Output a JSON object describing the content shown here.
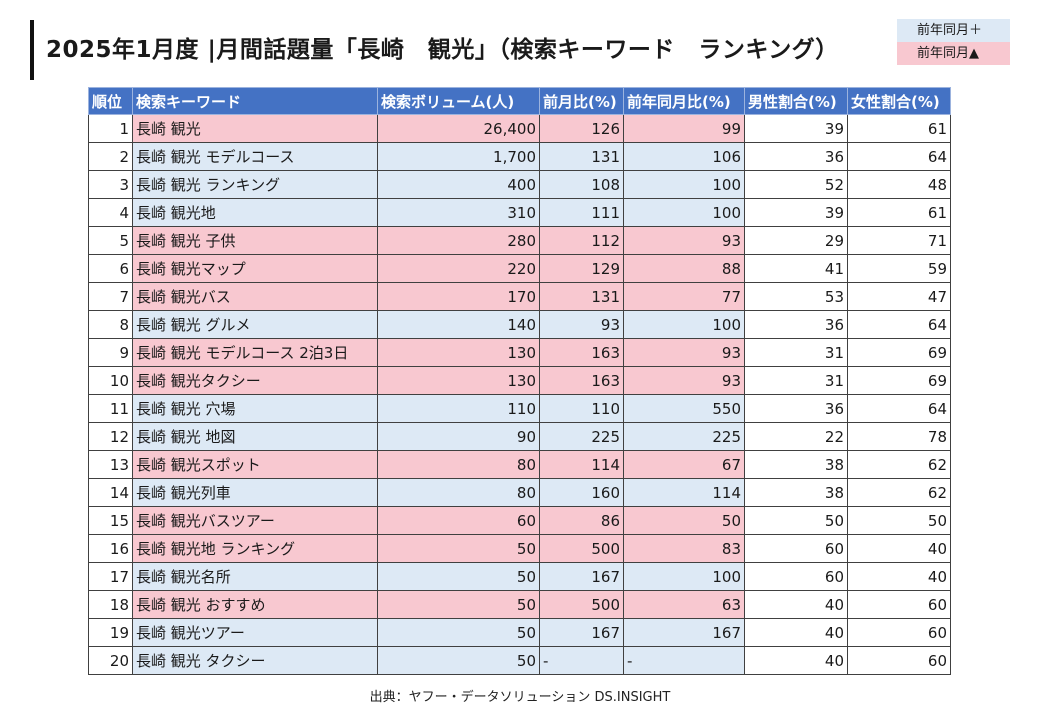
{
  "title": "2025年1月度 |月間話題量「長崎　観光」（検索キーワード　ランキング）",
  "legend": {
    "plus": "前年同月＋",
    "minus": "前年同月▲"
  },
  "headers": [
    "順位",
    "検索キーワード",
    "検索ボリューム(人)",
    "前月比(%)",
    "前年同月比(%)",
    "男性割合(%)",
    "女性割合(%)"
  ],
  "colors": {
    "header": "#4472c4",
    "increase": "#dde9f5",
    "decrease": "#f8c8d0"
  },
  "source": "出典：ヤフー・データソリューション DS.INSIGHT",
  "chart_data": {
    "type": "table",
    "columns": [
      "順位",
      "検索キーワード",
      "検索ボリューム(人)",
      "前月比(%)",
      "前年同月比(%)",
      "男性割合(%)",
      "女性割合(%)"
    ],
    "rows": [
      {
        "rank": "1",
        "keyword": "長崎 観光",
        "volume": "26,400",
        "mom": "126",
        "yoy": "99",
        "male": "39",
        "female": "61",
        "tone": "red"
      },
      {
        "rank": "2",
        "keyword": "長崎 観光 モデルコース",
        "volume": "1,700",
        "mom": "131",
        "yoy": "106",
        "male": "36",
        "female": "64",
        "tone": "blue"
      },
      {
        "rank": "3",
        "keyword": "長崎 観光 ランキング",
        "volume": "400",
        "mom": "108",
        "yoy": "100",
        "male": "52",
        "female": "48",
        "tone": "blue"
      },
      {
        "rank": "4",
        "keyword": "長崎 観光地",
        "volume": "310",
        "mom": "111",
        "yoy": "100",
        "male": "39",
        "female": "61",
        "tone": "blue"
      },
      {
        "rank": "5",
        "keyword": "長崎 観光 子供",
        "volume": "280",
        "mom": "112",
        "yoy": "93",
        "male": "29",
        "female": "71",
        "tone": "red"
      },
      {
        "rank": "6",
        "keyword": "長崎 観光マップ",
        "volume": "220",
        "mom": "129",
        "yoy": "88",
        "male": "41",
        "female": "59",
        "tone": "red"
      },
      {
        "rank": "7",
        "keyword": "長崎 観光バス",
        "volume": "170",
        "mom": "131",
        "yoy": "77",
        "male": "53",
        "female": "47",
        "tone": "red"
      },
      {
        "rank": "8",
        "keyword": "長崎 観光 グルメ",
        "volume": "140",
        "mom": "93",
        "yoy": "100",
        "male": "36",
        "female": "64",
        "tone": "blue"
      },
      {
        "rank": "9",
        "keyword": "長崎 観光 モデルコース 2泊3日",
        "volume": "130",
        "mom": "163",
        "yoy": "93",
        "male": "31",
        "female": "69",
        "tone": "red"
      },
      {
        "rank": "10",
        "keyword": "長崎 観光タクシー",
        "volume": "130",
        "mom": "163",
        "yoy": "93",
        "male": "31",
        "female": "69",
        "tone": "red"
      },
      {
        "rank": "11",
        "keyword": "長崎 観光 穴場",
        "volume": "110",
        "mom": "110",
        "yoy": "550",
        "male": "36",
        "female": "64",
        "tone": "blue"
      },
      {
        "rank": "12",
        "keyword": "長崎 観光 地図",
        "volume": "90",
        "mom": "225",
        "yoy": "225",
        "male": "22",
        "female": "78",
        "tone": "blue"
      },
      {
        "rank": "13",
        "keyword": "長崎 観光スポット",
        "volume": "80",
        "mom": "114",
        "yoy": "67",
        "male": "38",
        "female": "62",
        "tone": "red"
      },
      {
        "rank": "14",
        "keyword": "長崎 観光列車",
        "volume": "80",
        "mom": "160",
        "yoy": "114",
        "male": "38",
        "female": "62",
        "tone": "blue"
      },
      {
        "rank": "15",
        "keyword": "長崎 観光バスツアー",
        "volume": "60",
        "mom": "86",
        "yoy": "50",
        "male": "50",
        "female": "50",
        "tone": "red"
      },
      {
        "rank": "16",
        "keyword": "長崎 観光地 ランキング",
        "volume": "50",
        "mom": "500",
        "yoy": "83",
        "male": "60",
        "female": "40",
        "tone": "red"
      },
      {
        "rank": "17",
        "keyword": "長崎 観光名所",
        "volume": "50",
        "mom": "167",
        "yoy": "100",
        "male": "60",
        "female": "40",
        "tone": "blue"
      },
      {
        "rank": "18",
        "keyword": "長崎 観光 おすすめ",
        "volume": "50",
        "mom": "500",
        "yoy": "63",
        "male": "40",
        "female": "60",
        "tone": "red"
      },
      {
        "rank": "19",
        "keyword": "長崎 観光ツアー",
        "volume": "50",
        "mom": "167",
        "yoy": "167",
        "male": "40",
        "female": "60",
        "tone": "blue"
      },
      {
        "rank": "20",
        "keyword": "長崎 観光 タクシー",
        "volume": "50",
        "mom": "-",
        "yoy": "-",
        "male": "40",
        "female": "60",
        "tone": "blue"
      }
    ]
  }
}
